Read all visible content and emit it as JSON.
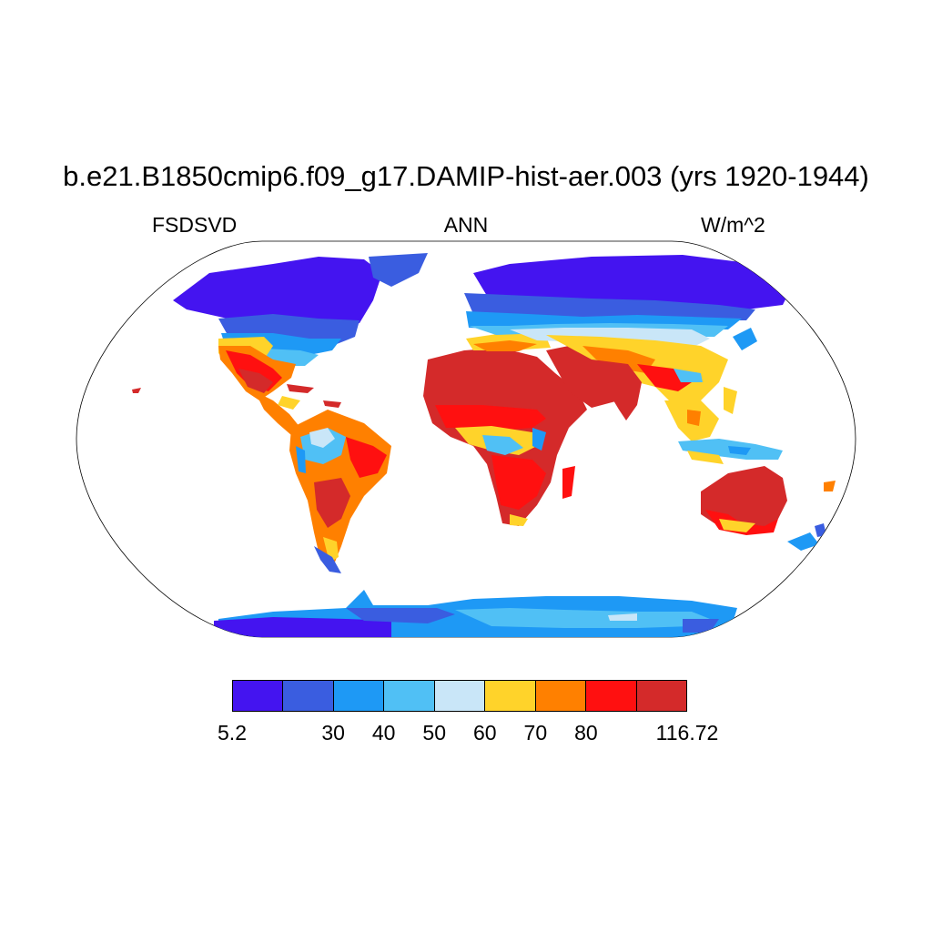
{
  "title": "b.e21.B1850cmip6.f09_g17.DAMIP-hist-aer.003 (yrs 1920-1944)",
  "left_label": "FSDSVD",
  "center_label": "ANN",
  "right_label": "W/m^2",
  "colorbar": {
    "colors": [
      "#4414f0",
      "#3a5de0",
      "#1e99f5",
      "#50c0f5",
      "#c9e6f8",
      "#ffd32a",
      "#ff8000",
      "#ff1010",
      "#d42a2a"
    ],
    "labels": [
      {
        "text": "5.2",
        "boundary": 0
      },
      {
        "text": "30",
        "boundary": 2
      },
      {
        "text": "40",
        "boundary": 3
      },
      {
        "text": "50",
        "boundary": 4
      },
      {
        "text": "60",
        "boundary": 5
      },
      {
        "text": "70",
        "boundary": 6
      },
      {
        "text": "80",
        "boundary": 7
      },
      {
        "text": "116.72",
        "boundary": 9
      }
    ]
  }
}
